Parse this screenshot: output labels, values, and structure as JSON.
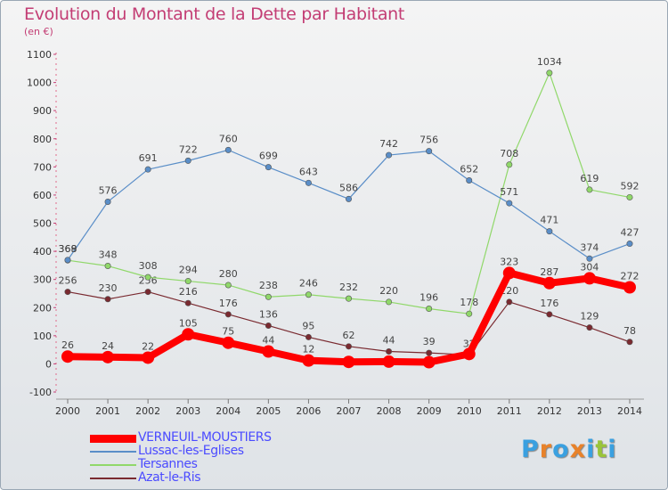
{
  "title": "Evolution du Montant de la Dette par Habitant",
  "subtitle": "(en €)",
  "chart_data": {
    "type": "line",
    "title": "Evolution du Montant de la Dette par Habitant",
    "subtitle": "(en €)",
    "xlabel": "",
    "ylabel": "",
    "x": [
      "2000",
      "2001",
      "2002",
      "2003",
      "2004",
      "2005",
      "2006",
      "2007",
      "2008",
      "2009",
      "2010",
      "2011",
      "2012",
      "2013",
      "2014"
    ],
    "ylim": [
      -100,
      1100
    ],
    "yticks": [
      "-100",
      "0",
      "100",
      "200",
      "300",
      "400",
      "500",
      "600",
      "700",
      "800",
      "900",
      "1000",
      "1100"
    ],
    "grid": false,
    "legend_position": "bottom-left",
    "series": [
      {
        "name": "VERNEUIL-MOUSTIERS",
        "color": "#ff0000",
        "values": [
          26,
          24,
          22,
          105,
          75,
          44,
          12,
          7,
          8,
          6,
          35,
          323,
          287,
          304,
          272
        ],
        "labels": [
          "26",
          "24",
          "22",
          "105",
          "75",
          "44",
          "12",
          "",
          "",
          "",
          "",
          "323",
          "287",
          "304",
          "272"
        ]
      },
      {
        "name": "Lussac-les-Eglises",
        "color": "#5a8ec8",
        "values": [
          369,
          576,
          691,
          722,
          760,
          699,
          643,
          586,
          742,
          756,
          652,
          571,
          471,
          374,
          427
        ],
        "labels": [
          "369",
          "576",
          "691",
          "722",
          "760",
          "699",
          "643",
          "586",
          "742",
          "756",
          "652",
          "571",
          "471",
          "374",
          "427"
        ]
      },
      {
        "name": "Tersannes",
        "color": "#90d86a",
        "values": [
          368,
          348,
          308,
          294,
          280,
          238,
          246,
          232,
          220,
          196,
          178,
          708,
          1034,
          619,
          592
        ],
        "labels": [
          "368",
          "348",
          "308",
          "294",
          "280",
          "238",
          "246",
          "232",
          "220",
          "196",
          "178",
          "708",
          "1034",
          "619",
          "592"
        ]
      },
      {
        "name": "Azat-le-Ris",
        "color": "#7a2a30",
        "values": [
          256,
          230,
          256,
          216,
          176,
          136,
          95,
          62,
          44,
          39,
          32,
          220,
          176,
          129,
          78
        ],
        "labels": [
          "256",
          "230",
          "256",
          "216",
          "176",
          "136",
          "95",
          "62",
          "44",
          "39",
          "32",
          "220",
          "176",
          "129",
          "78"
        ]
      }
    ]
  },
  "logo": {
    "letters": [
      "P",
      "r",
      "o",
      "x",
      "i",
      "t",
      "i"
    ],
    "colors": [
      "#3aa0e0",
      "#e8822a",
      "#3aa0e0",
      "#e8822a",
      "#3aa0e0",
      "#9ac43a",
      "#3aa0e0"
    ]
  }
}
